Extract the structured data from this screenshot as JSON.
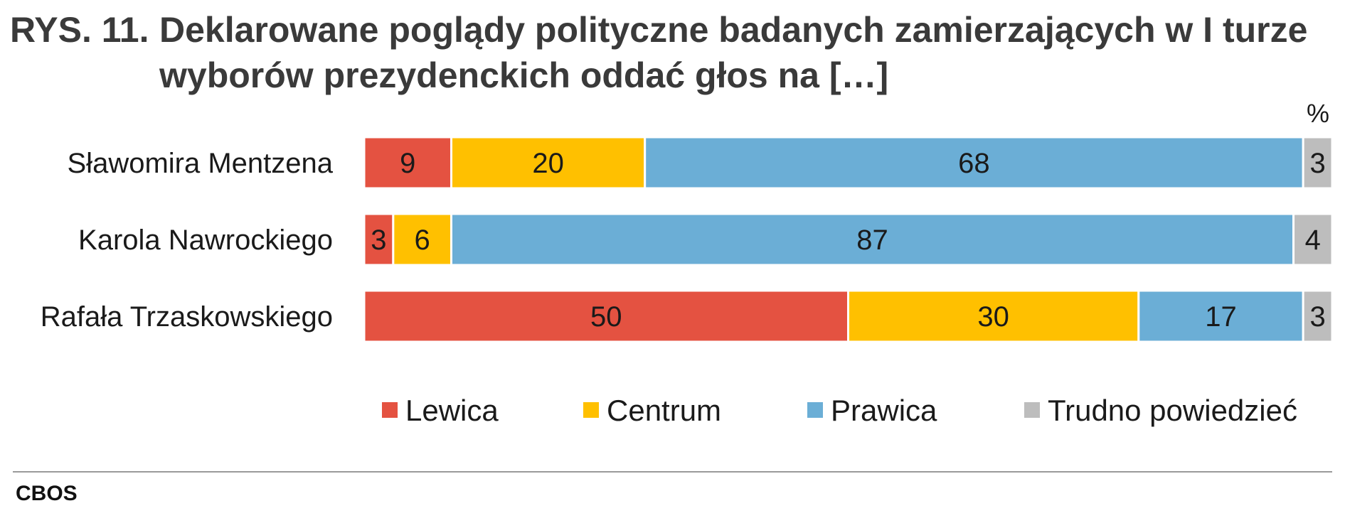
{
  "title": {
    "number": "RYS. 11.",
    "line1": "Deklarowane poglądy polityczne badanych zamierzających w I turze",
    "line2": "wyborów prezydenckich oddać głos na […]"
  },
  "unit": "%",
  "source": "CBOS",
  "chart_data": {
    "type": "bar",
    "orientation": "horizontal",
    "stacked": true,
    "categories": [
      "Sławomira Mentzena",
      "Karola Nawrockiego",
      "Rafała Trzaskowskiego"
    ],
    "series": [
      {
        "name": "Lewica",
        "color": "#e45241",
        "values": [
          9,
          3,
          50
        ]
      },
      {
        "name": "Centrum",
        "color": "#ffc000",
        "values": [
          20,
          6,
          30
        ]
      },
      {
        "name": "Prawica",
        "color": "#6baed6",
        "values": [
          68,
          87,
          17
        ]
      },
      {
        "name": "Trudno powiedzieć",
        "color": "#bdbdbd",
        "values": [
          3,
          4,
          3
        ]
      }
    ],
    "xlim": [
      0,
      100
    ],
    "legend_position": "bottom",
    "grid": false
  }
}
